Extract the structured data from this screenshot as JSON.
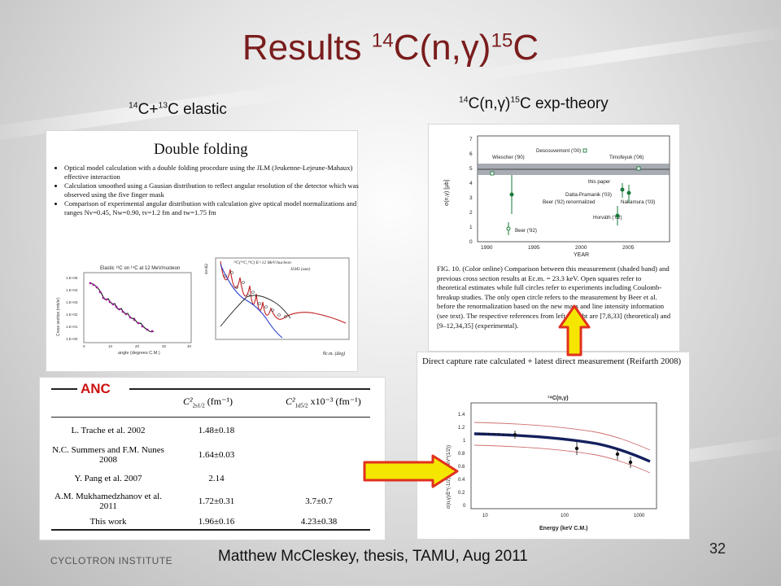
{
  "slide": {
    "title_main": "Results ",
    "title_sup1": "14",
    "title_mid": "C(n,γ)",
    "title_sup2": "15",
    "title_end": "C"
  },
  "left_label": {
    "sup": "14",
    "a": "C+",
    "sup2": "13",
    "b": "C elastic"
  },
  "right_label": {
    "sup": "14",
    "a": "C(n,γ)",
    "sup2": "15",
    "b": "C exp-theory"
  },
  "double_folding": {
    "heading": "Double folding",
    "bullets": [
      "Optical model calculation with a double folding procedure using the JLM (Jeukenne-Lejeune-Mahaux) effective interaction",
      "Calculation smoothed using a Gausian distribution to reflect angular resolution of the detector which was observed using the five finger mask",
      "Comparison of experimental angular distribution with calculation give optical model normalizations and ranges Nv=0.45, Nw=0.90, tv=1.2 fm and tw=1.75 fm"
    ],
    "plot1": {
      "title": "Elastic ¹³C on ¹⁴C at 12 MeV/nucleon",
      "ylabel": "Cross section (mb/sr)",
      "xlabel": "angle (degrees C.M.)",
      "yticks": [
        "1.E+05",
        "1.E+04",
        "1.E+03",
        "1.E+02",
        "1.E+01",
        "1.E+00"
      ],
      "xticks": [
        "0",
        "10",
        "20",
        "30",
        "40"
      ]
    },
    "plot2": {
      "title": "¹³C(¹⁴C,¹³C) E=12 MeV/nucleon",
      "subtitle": "JLM3 (sum)",
      "ylabel": "dσ/dΩ",
      "xlabel": "θc.m. (deg)"
    }
  },
  "anc_table": {
    "label": "ANC",
    "col1": "C²",
    "col1_sub": "2s1/2",
    "col1_unit": " (fm⁻¹)",
    "col2": "C²",
    "col2_sub": "1d5/2",
    "col2_unit": " x10⁻³ (fm⁻¹)",
    "rows": [
      {
        "name": "L. Trache et al. 2002",
        "v1": "1.48±0.18",
        "v2": ""
      },
      {
        "name": "N.C. Summers and F.M. Nunes 2008",
        "v1": "1.64±0.03",
        "v2": ""
      },
      {
        "name": "Y. Pang et al. 2007",
        "v1": "2.14",
        "v2": ""
      },
      {
        "name": "A.M. Mukhamedzhanov et al. 2011",
        "v1": "1.72±0.31",
        "v2": "3.7±0.7"
      },
      {
        "name": "This work",
        "v1": "1.96±0.16",
        "v2": "4.23±0.38"
      }
    ]
  },
  "exp_theory": {
    "ylabel": "σ(n,γ) [μb]",
    "xlabel": "YEAR",
    "yticks": [
      "7",
      "6",
      "5",
      "4",
      "3",
      "2",
      "1",
      "0"
    ],
    "xticks": [
      "1990",
      "1995",
      "2000",
      "2005"
    ],
    "annotations": [
      "Descouvemont ('00)",
      "Wiescher ('90)",
      "Timofeyuk ('06)",
      "this paper",
      "Datta-Pramanik ('03)",
      "Beer ('92) renormalized",
      "Nakamura ('03)",
      "Horváth ('02)",
      "Beer ('92)"
    ],
    "caption": "FIG. 10. (Color online) Comparison between this measurement (shaded band) and previous cross section results at Ec.m. = 23.3 keV. Open squares refer to theoretical estimates while full circles refer to experiments including Coulomb-breakup studies. The only open circle refers to the measurement by Beer et al. before the renormalization based on the new mass and line intensity information (see text). The respective references from left to right are [7,8,33] (theoretical) and [9–12,34,35] (experimental)."
  },
  "capture_rate": {
    "header": "Direct capture rate calculated + latest direct measurement (Reifarth 2008)",
    "plot_title": "¹⁴C(n,γ)",
    "ylabel": "σ(n,γ)/E^(-1/2) (μb keV^(1/2))",
    "xlabel": "Energy (keV C.M.)",
    "yticks": [
      "1.4",
      "1.2",
      "1",
      "0.8",
      "0.6",
      "0.4",
      "0.2",
      "0"
    ],
    "xticks": [
      "10",
      "100",
      "1000"
    ]
  },
  "footer": {
    "institute": "CYCLOTRON INSTITUTE",
    "credit": "Matthew McCleskey, thesis, TAMU, Aug 2011",
    "page": "32"
  },
  "colors": {
    "title": "#7a1d1d",
    "arrow_fill": "#f5e600",
    "arrow_stroke": "#e03020",
    "anc_red": "#cc1111"
  }
}
